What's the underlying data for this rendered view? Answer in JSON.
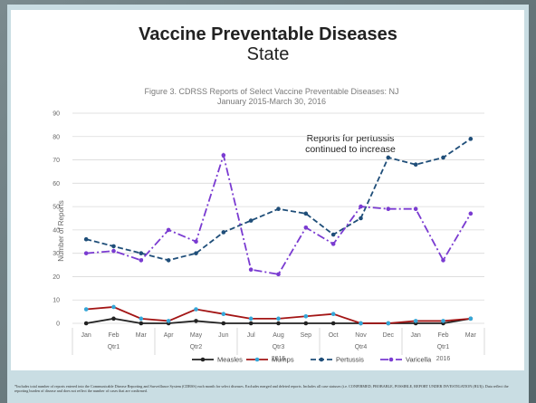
{
  "slide": {
    "title": "Vaccine Preventable Diseases",
    "subtitle": "State",
    "annotation_line1": "Reports for pertussis",
    "annotation_line2": "continued to increase",
    "footnote": "*Includes total number of reports entered into the Communicable Disease Reporting and Surveillance System (CDRSS) each month for select diseases. Excludes merged and deleted reports. Includes all case statuses (i.e. CONFIRMED, PROBABLE, POSSIBLE, REPORT UNDER INVESTIGATION (RUI)). Data reflect the reporting burden of disease and does not reflect the number of cases that are confirmed."
  },
  "chart_data": {
    "type": "line",
    "title_line1": "Figure 3.  CDRSS Reports of Select Vaccine Preventable Diseases: NJ",
    "title_line2": "January 2015-March 30, 2016",
    "ylabel": "Number of Reports",
    "ylim": [
      0,
      90
    ],
    "yticks": [
      0,
      10,
      20,
      30,
      40,
      50,
      60,
      70,
      80,
      90
    ],
    "categories": [
      "Jan",
      "Feb",
      "Mar",
      "Apr",
      "May",
      "Jun",
      "Jul",
      "Aug",
      "Sep",
      "Oct",
      "Nov",
      "Dec",
      "Jan",
      "Feb",
      "Mar"
    ],
    "quarters": [
      {
        "label": "Qtr1",
        "center_index": 1
      },
      {
        "label": "Qtr2",
        "center_index": 4
      },
      {
        "label": "Qtr3",
        "center_index": 7
      },
      {
        "label": "Qtr4",
        "center_index": 10
      },
      {
        "label": "Qtr1",
        "center_index": 13
      }
    ],
    "years": [
      {
        "label": "2015",
        "center_index": 7
      },
      {
        "label": "2016",
        "center_index": 13
      }
    ],
    "grid": true,
    "legend_position": "bottom",
    "series": [
      {
        "name": "Measles",
        "color": "#222222",
        "dash": "solid",
        "marker": "#222222",
        "values": [
          0,
          2,
          0,
          0,
          1,
          0,
          0,
          0,
          0,
          0,
          0,
          0,
          0,
          0,
          2
        ]
      },
      {
        "name": "Mumps",
        "color": "#a31515",
        "dash": "solid",
        "marker": "#a31515",
        "values": [
          6,
          7,
          2,
          1,
          6,
          4,
          2,
          2,
          3,
          4,
          0,
          0,
          1,
          1,
          2
        ]
      },
      {
        "name": "Pertussis",
        "color": "#1f4e79",
        "dash": "dashed",
        "marker": "#1f4e79",
        "values": [
          36,
          33,
          30,
          27,
          30,
          39,
          44,
          49,
          47,
          38,
          45,
          71,
          68,
          71,
          79
        ]
      },
      {
        "name": "Varicella",
        "color": "#7a3bd1",
        "dash": "dashdot",
        "marker": "#7a3bd1",
        "values": [
          30,
          31,
          27,
          40,
          35,
          72,
          23,
          21,
          41,
          34,
          50,
          49,
          49,
          27,
          47
        ]
      }
    ],
    "mumps_marker_color": "#35a7d8"
  }
}
